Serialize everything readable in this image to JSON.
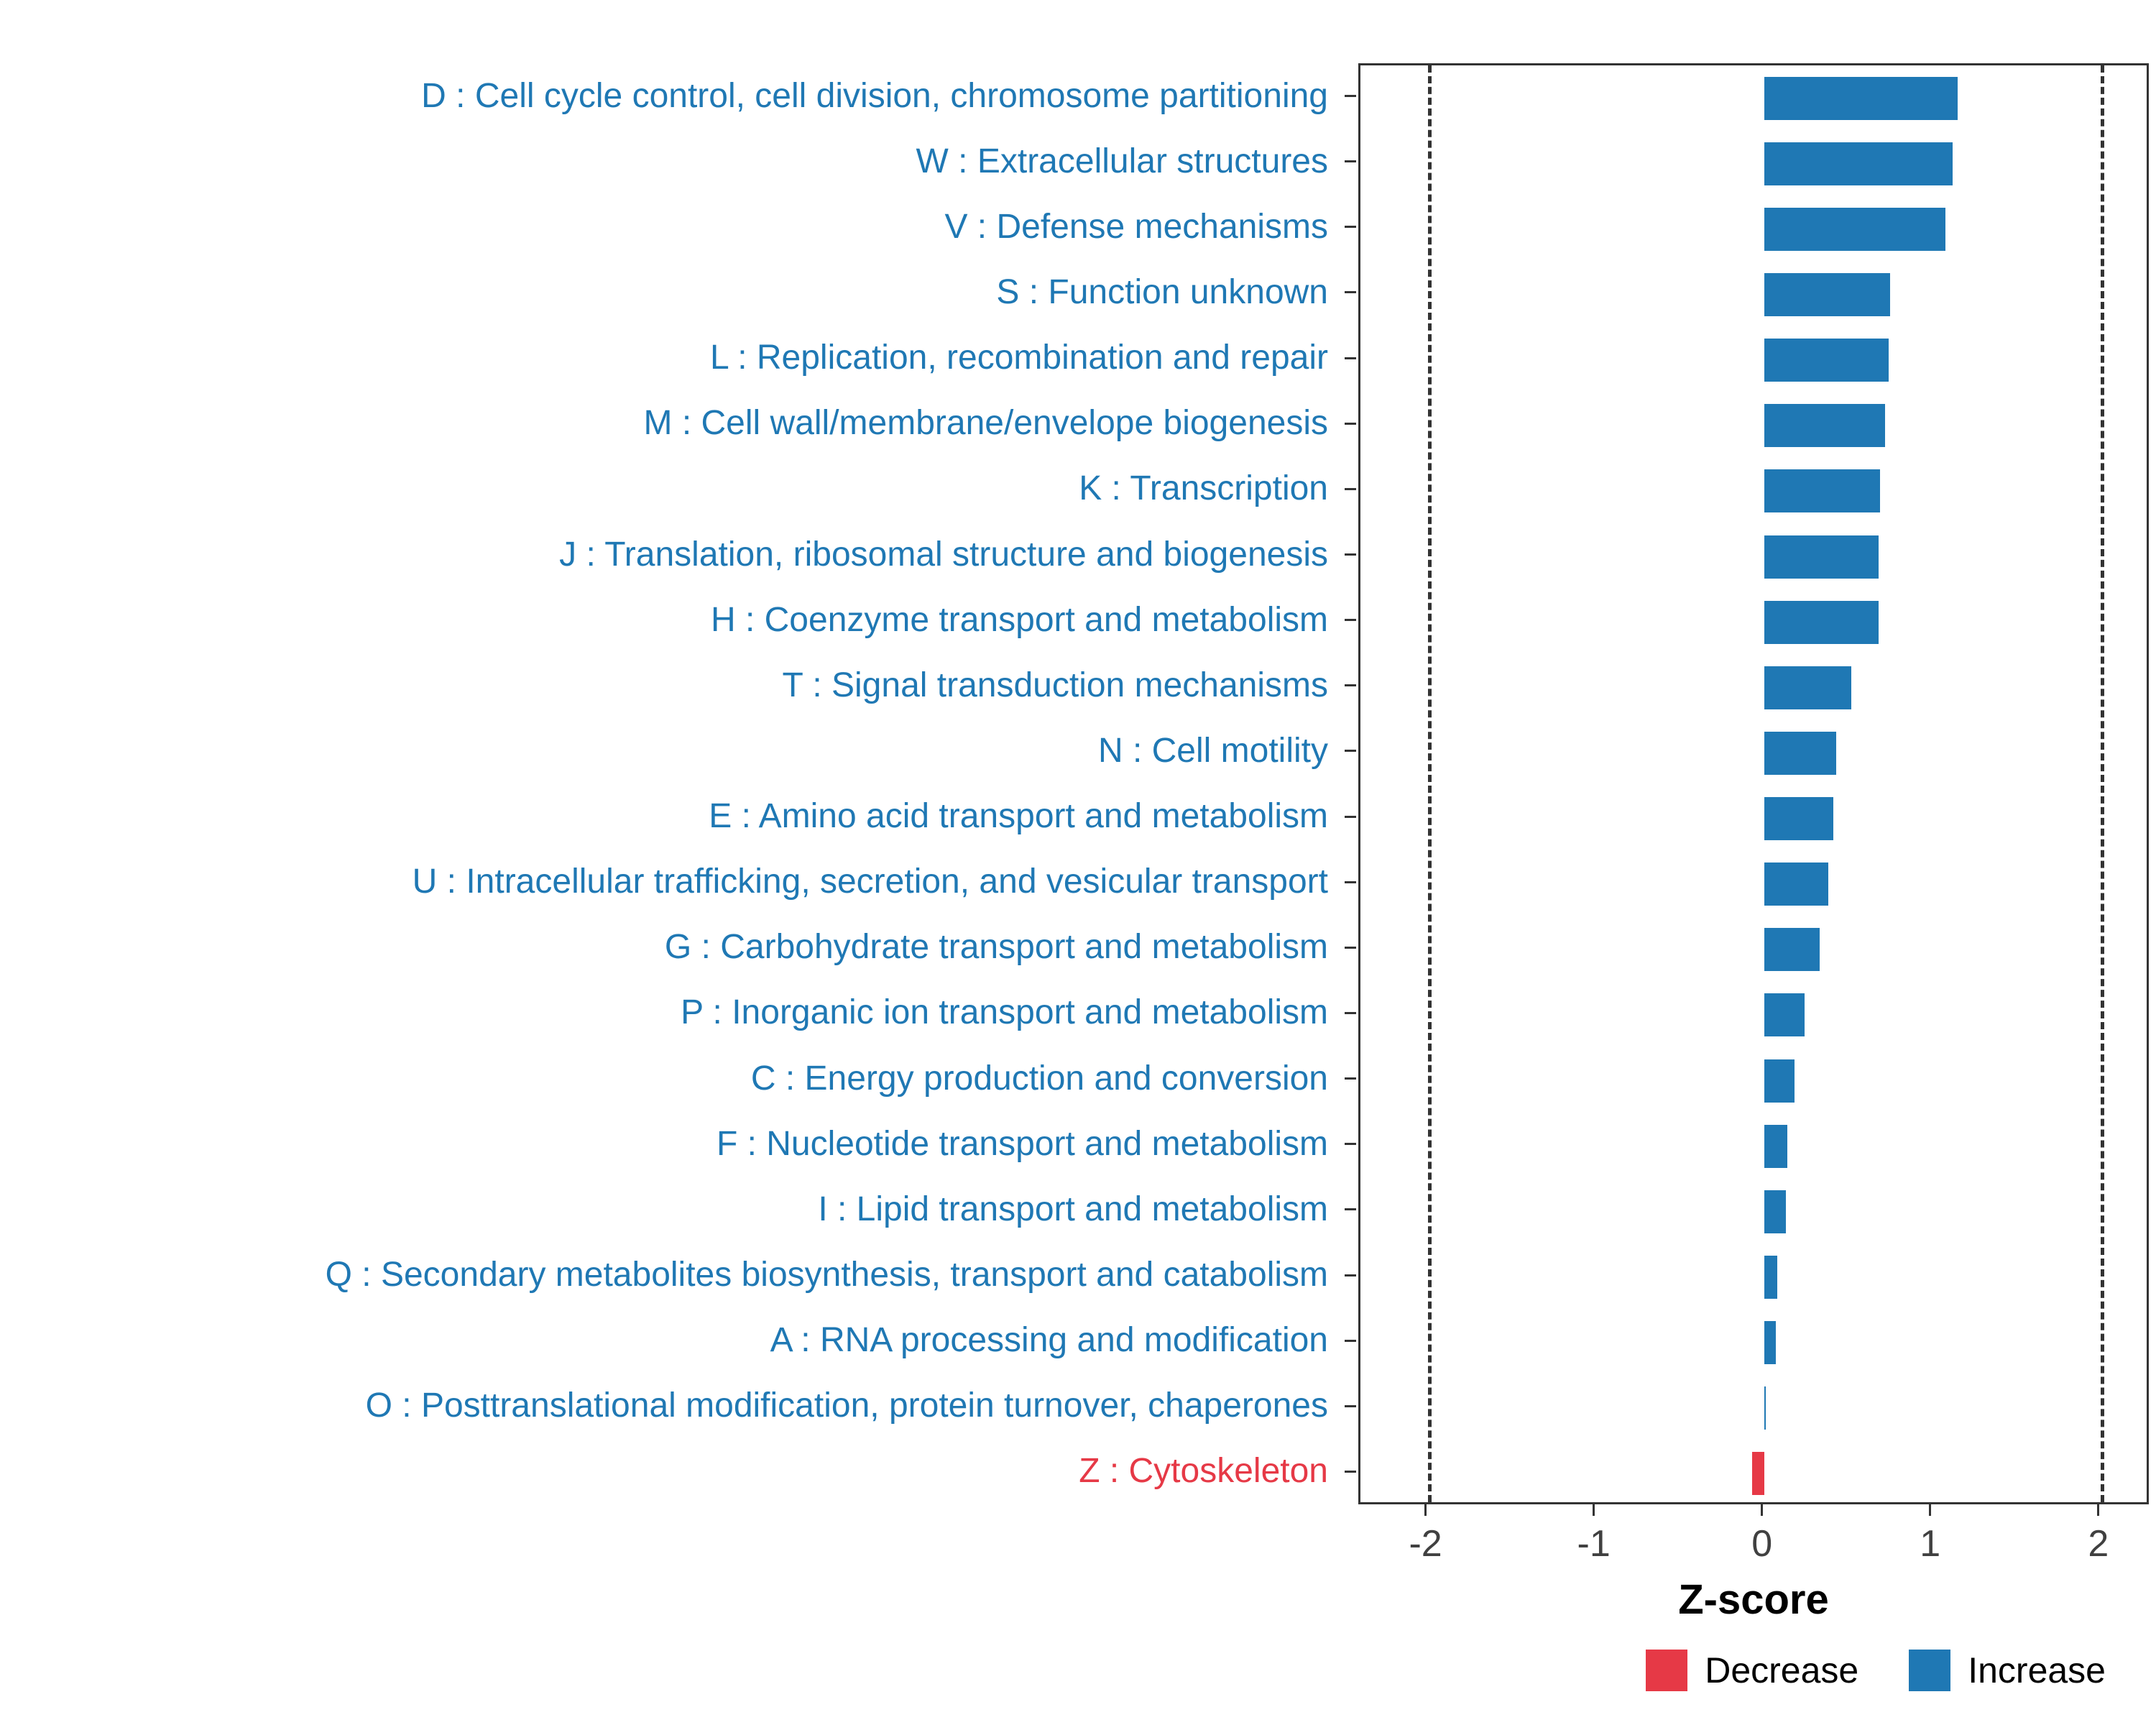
{
  "chart_data": {
    "type": "bar",
    "orientation": "horizontal",
    "title": "",
    "xlabel": "Z-score",
    "ylabel": "",
    "xlim": [
      -2.4,
      2.3
    ],
    "x_ticks": [
      -2,
      -1,
      0,
      1,
      2
    ],
    "x_tick_labels": [
      "-2",
      "-1",
      "0",
      "1",
      "2"
    ],
    "dashed_lines": [
      -2,
      2
    ],
    "grid": false,
    "legend_position": "bottom-right",
    "colors": {
      "increase": "#1F78B4",
      "decrease": "#E63946",
      "axis_text": "#404040",
      "panel_border": "#333333"
    },
    "legend": [
      {
        "label": "Decrease",
        "color": "#E63946"
      },
      {
        "label": "Increase",
        "color": "#1F78B4"
      }
    ],
    "categories": [
      "D : Cell cycle control, cell division, chromosome partitioning",
      "W : Extracellular structures",
      "V : Defense mechanisms",
      "S : Function unknown",
      "L : Replication, recombination and repair",
      "M : Cell wall/membrane/envelope biogenesis",
      "K : Transcription",
      "J : Translation, ribosomal structure and biogenesis",
      "H : Coenzyme transport and metabolism",
      "T : Signal transduction mechanisms",
      "N : Cell motility",
      "E : Amino acid transport and metabolism",
      "U : Intracellular trafficking, secretion, and vesicular transport",
      "G : Carbohydrate transport and metabolism",
      "P : Inorganic ion transport and metabolism",
      "C : Energy production and conversion",
      "F : Nucleotide transport and metabolism",
      "I : Lipid transport and metabolism",
      "Q : Secondary metabolites biosynthesis, transport and catabolism",
      "A : RNA processing and modification",
      "O : Posttranslational modification, protein turnover, chaperones",
      "Z : Cytoskeleton"
    ],
    "values": [
      1.15,
      1.12,
      1.08,
      0.75,
      0.74,
      0.72,
      0.69,
      0.68,
      0.68,
      0.52,
      0.43,
      0.41,
      0.38,
      0.33,
      0.24,
      0.18,
      0.14,
      0.13,
      0.08,
      0.07,
      0.01,
      -0.07
    ],
    "directions": [
      "Increase",
      "Increase",
      "Increase",
      "Increase",
      "Increase",
      "Increase",
      "Increase",
      "Increase",
      "Increase",
      "Increase",
      "Increase",
      "Increase",
      "Increase",
      "Increase",
      "Increase",
      "Increase",
      "Increase",
      "Increase",
      "Increase",
      "Increase",
      "Increase",
      "Decrease"
    ]
  }
}
